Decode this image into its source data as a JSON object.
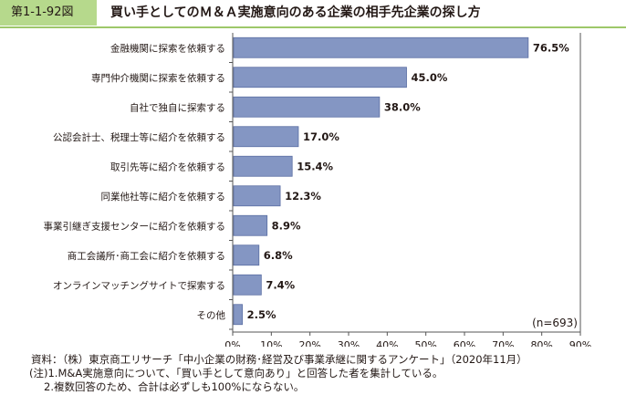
{
  "figure_label": "第1-1-92図",
  "figure_title": "買い手としてのＭ＆Ａ実施意向のある企業の相手先企業の探し方",
  "chart_data": {
    "type": "bar",
    "orientation": "horizontal",
    "categories": [
      "金融機関に探索を依頼する",
      "専門仲介機関に探索を依頼する",
      "自社で独自に探索する",
      "公認会計士、税理士等に紹介を依頼する",
      "取引先等に紹介を依頼する",
      "同業他社等に紹介を依頼する",
      "事業引継ぎ支援センターに紹介を依頼する",
      "商工会議所･商工会に紹介を依頼する",
      "オンラインマッチングサイトで探索する",
      "その他"
    ],
    "values": [
      76.5,
      45.0,
      38.0,
      17.0,
      15.4,
      12.3,
      8.9,
      6.8,
      7.4,
      2.5
    ],
    "value_labels": [
      "76.5%",
      "45.0%",
      "38.0%",
      "17.0%",
      "15.4%",
      "12.3%",
      "8.9%",
      "6.8%",
      "7.4%",
      "2.5%"
    ],
    "xlim": [
      0,
      90
    ],
    "x_ticks": [
      "0%",
      "10%",
      "20%",
      "30%",
      "40%",
      "50%",
      "60%",
      "70%",
      "80%",
      "90%"
    ],
    "bar_color": "#8496c3",
    "bar_edge_color": "#5b6ea3",
    "grid": false,
    "annotation": "(n=693)"
  },
  "notes": [
    "資料：（株）東京商工リサーチ「中小企業の財務･経営及び事業承継に関するアンケート」（2020年11月）",
    "(注)1.M&A実施意向について、「買い手として意向あり」と回答した者を集計している。",
    "2.複数回答のため、合計は必ずしも100%にならない。"
  ]
}
